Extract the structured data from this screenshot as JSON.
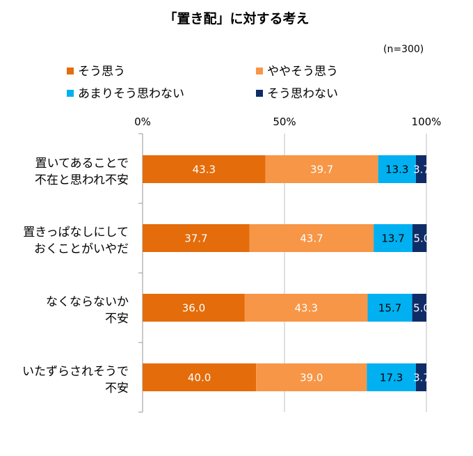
{
  "title": "「置き配」に対する考え",
  "note": "(n=300)",
  "chart_data": {
    "type": "bar",
    "orientation": "horizontal",
    "stacked": true,
    "title": "「置き配」に対する考え",
    "xlim": [
      0,
      100
    ],
    "x_ticks": [
      "0%",
      "50%",
      "100%"
    ],
    "categories": [
      [
        "置いてあることで",
        "不在と思われ不安"
      ],
      [
        "置きっぱなしにして",
        "おくことがいやだ"
      ],
      [
        "なくならないか",
        "不安"
      ],
      [
        "いたずらされそうで",
        "不安"
      ]
    ],
    "series": [
      {
        "name": "そう思う",
        "color": "#E46C0A",
        "label_color": "#ffffff",
        "values": [
          43.3,
          37.7,
          36.0,
          40.0
        ]
      },
      {
        "name": "ややそう思う",
        "color": "#F79646",
        "label_color": "#ffffff",
        "values": [
          39.7,
          43.7,
          43.3,
          39.0
        ]
      },
      {
        "name": "あまりそう思わない",
        "color": "#00B0F0",
        "label_color": "#000000",
        "values": [
          13.3,
          13.7,
          15.7,
          17.3
        ]
      },
      {
        "name": "そう思わない",
        "color": "#0F2C66",
        "label_color": "#ffffff",
        "values": [
          3.7,
          5.0,
          5.0,
          3.7
        ]
      }
    ],
    "value_labels": [
      [
        "43.3",
        "39.7",
        "13.3",
        "3.7"
      ],
      [
        "37.7",
        "43.7",
        "13.7",
        "5.0"
      ],
      [
        "36.0",
        "43.3",
        "15.7",
        "5.0"
      ],
      [
        "40.0",
        "39.0",
        "17.3",
        "3.7"
      ]
    ],
    "gridlines": true,
    "legend_position": "top"
  }
}
